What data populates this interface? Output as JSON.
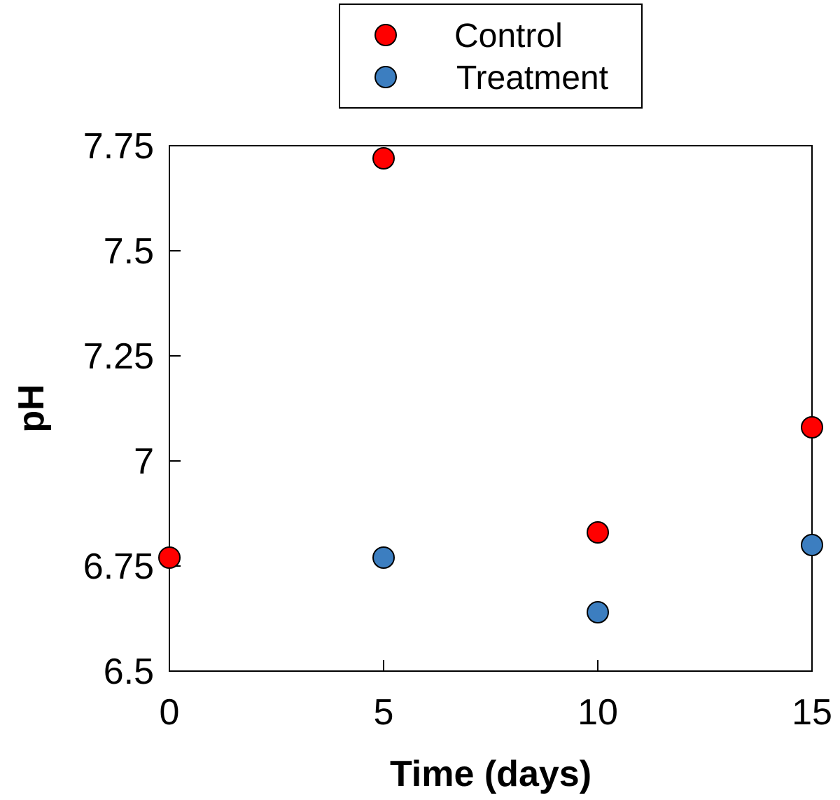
{
  "chart_data": {
    "type": "scatter",
    "xlabel": "Time (days)",
    "ylabel": "pH",
    "xlim": [
      0,
      15
    ],
    "ylim": [
      6.5,
      7.75
    ],
    "xticks": [
      {
        "value": 0,
        "label": "0"
      },
      {
        "value": 5,
        "label": "5"
      },
      {
        "value": 10,
        "label": "10"
      },
      {
        "value": 15,
        "label": "15"
      }
    ],
    "yticks": [
      {
        "value": 6.5,
        "label": "6.5"
      },
      {
        "value": 6.75,
        "label": "6.75"
      },
      {
        "value": 7.0,
        "label": "7"
      },
      {
        "value": 7.25,
        "label": "7.25"
      },
      {
        "value": 7.5,
        "label": "7.5"
      },
      {
        "value": 7.75,
        "label": "7.75"
      }
    ],
    "legend_position": "top-center-outside",
    "grid": false,
    "series": [
      {
        "name": "Control",
        "color": "#ff0000",
        "x": [
          0,
          5,
          10,
          15
        ],
        "y": [
          6.77,
          7.72,
          6.83,
          7.08
        ]
      },
      {
        "name": "Treatment",
        "color": "#3c7ec0",
        "x": [
          5,
          10,
          15
        ],
        "y": [
          6.77,
          6.64,
          6.8
        ]
      }
    ]
  }
}
